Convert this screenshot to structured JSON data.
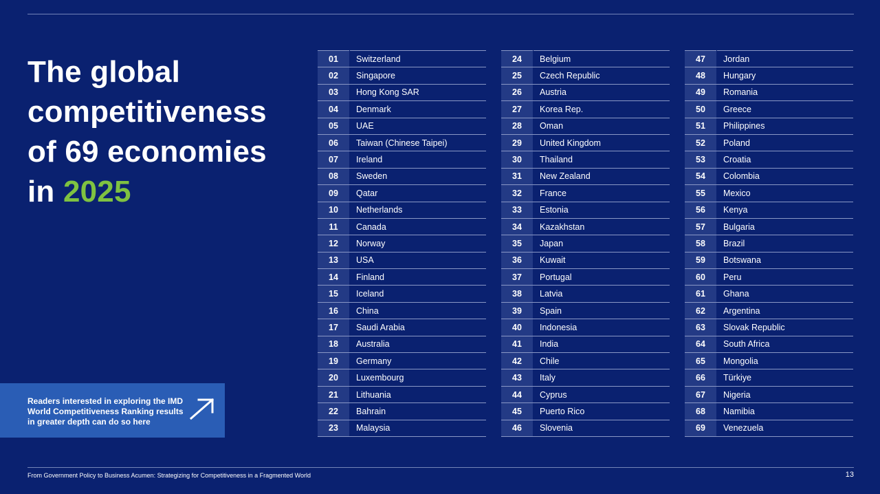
{
  "title": {
    "line1": "The global",
    "line2": "competitiveness",
    "line3": "of 69 economies",
    "line4_prefix": "in ",
    "year": "2025"
  },
  "colors": {
    "background": "#0a2170",
    "accent_green": "#7fc241",
    "cta_blue": "#2a5db5",
    "rank_cell": "#233a85"
  },
  "cta": {
    "text": "Readers interested in exploring the IMD World Competitiveness Ranking results in greater depth can do so here",
    "icon": "arrow-up-right-icon"
  },
  "rankings": [
    {
      "rank": "01",
      "country": "Switzerland"
    },
    {
      "rank": "02",
      "country": "Singapore"
    },
    {
      "rank": "03",
      "country": "Hong Kong SAR"
    },
    {
      "rank": "04",
      "country": "Denmark"
    },
    {
      "rank": "05",
      "country": "UAE"
    },
    {
      "rank": "06",
      "country": "Taiwan (Chinese Taipei)"
    },
    {
      "rank": "07",
      "country": "Ireland"
    },
    {
      "rank": "08",
      "country": "Sweden"
    },
    {
      "rank": "09",
      "country": "Qatar"
    },
    {
      "rank": "10",
      "country": "Netherlands"
    },
    {
      "rank": "11",
      "country": "Canada"
    },
    {
      "rank": "12",
      "country": "Norway"
    },
    {
      "rank": "13",
      "country": "USA"
    },
    {
      "rank": "14",
      "country": "Finland"
    },
    {
      "rank": "15",
      "country": "Iceland"
    },
    {
      "rank": "16",
      "country": "China"
    },
    {
      "rank": "17",
      "country": "Saudi Arabia"
    },
    {
      "rank": "18",
      "country": "Australia"
    },
    {
      "rank": "19",
      "country": "Germany"
    },
    {
      "rank": "20",
      "country": "Luxembourg"
    },
    {
      "rank": "21",
      "country": "Lithuania"
    },
    {
      "rank": "22",
      "country": "Bahrain"
    },
    {
      "rank": "23",
      "country": "Malaysia"
    },
    {
      "rank": "24",
      "country": "Belgium"
    },
    {
      "rank": "25",
      "country": "Czech Republic"
    },
    {
      "rank": "26",
      "country": "Austria"
    },
    {
      "rank": "27",
      "country": "Korea Rep."
    },
    {
      "rank": "28",
      "country": "Oman"
    },
    {
      "rank": "29",
      "country": "United Kingdom"
    },
    {
      "rank": "30",
      "country": "Thailand"
    },
    {
      "rank": "31",
      "country": "New Zealand"
    },
    {
      "rank": "32",
      "country": "France"
    },
    {
      "rank": "33",
      "country": "Estonia"
    },
    {
      "rank": "34",
      "country": "Kazakhstan"
    },
    {
      "rank": "35",
      "country": "Japan"
    },
    {
      "rank": "36",
      "country": "Kuwait"
    },
    {
      "rank": "37",
      "country": "Portugal"
    },
    {
      "rank": "38",
      "country": "Latvia"
    },
    {
      "rank": "39",
      "country": "Spain"
    },
    {
      "rank": "40",
      "country": "Indonesia"
    },
    {
      "rank": "41",
      "country": "India"
    },
    {
      "rank": "42",
      "country": "Chile"
    },
    {
      "rank": "43",
      "country": "Italy"
    },
    {
      "rank": "44",
      "country": "Cyprus"
    },
    {
      "rank": "45",
      "country": "Puerto Rico"
    },
    {
      "rank": "46",
      "country": "Slovenia"
    },
    {
      "rank": "47",
      "country": "Jordan"
    },
    {
      "rank": "48",
      "country": "Hungary"
    },
    {
      "rank": "49",
      "country": "Romania"
    },
    {
      "rank": "50",
      "country": "Greece"
    },
    {
      "rank": "51",
      "country": "Philippines"
    },
    {
      "rank": "52",
      "country": "Poland"
    },
    {
      "rank": "53",
      "country": "Croatia"
    },
    {
      "rank": "54",
      "country": "Colombia"
    },
    {
      "rank": "55",
      "country": "Mexico"
    },
    {
      "rank": "56",
      "country": "Kenya"
    },
    {
      "rank": "57",
      "country": "Bulgaria"
    },
    {
      "rank": "58",
      "country": "Brazil"
    },
    {
      "rank": "59",
      "country": "Botswana"
    },
    {
      "rank": "60",
      "country": "Peru"
    },
    {
      "rank": "61",
      "country": "Ghana"
    },
    {
      "rank": "62",
      "country": "Argentina"
    },
    {
      "rank": "63",
      "country": "Slovak Republic"
    },
    {
      "rank": "64",
      "country": "South Africa"
    },
    {
      "rank": "65",
      "country": "Mongolia"
    },
    {
      "rank": "66",
      "country": "Türkiye"
    },
    {
      "rank": "67",
      "country": "Nigeria"
    },
    {
      "rank": "68",
      "country": "Namibia"
    },
    {
      "rank": "69",
      "country": "Venezuela"
    }
  ],
  "footer": {
    "text": "From Government Policy to Business Acumen: Strategizing for Competitiveness in a Fragmented World",
    "page_number": "13"
  }
}
